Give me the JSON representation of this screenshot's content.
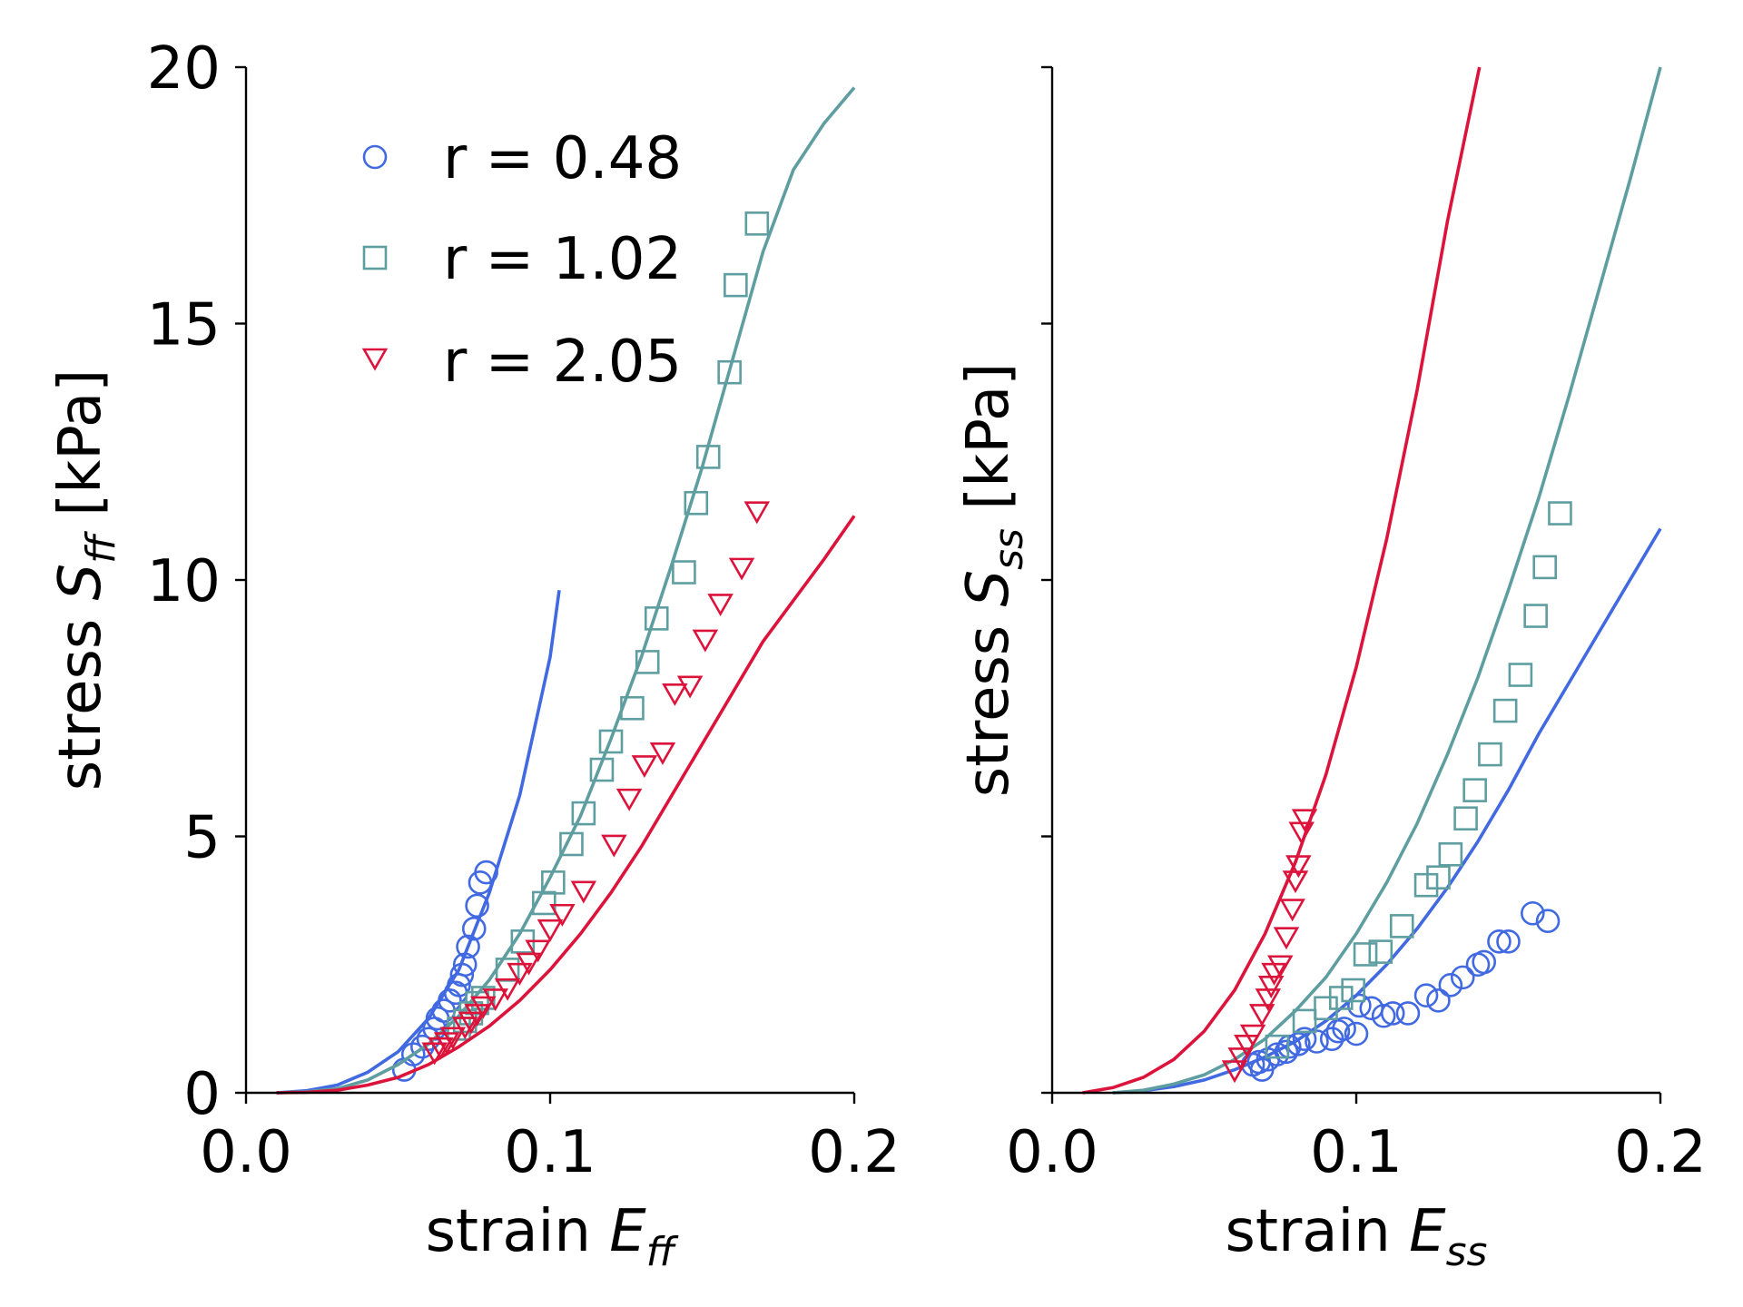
{
  "figure": {
    "legend": [
      {
        "label": "r = 0.48",
        "color": "#4169e1",
        "marker": "circle"
      },
      {
        "label": "r = 1.02",
        "color": "#5f9ea0",
        "marker": "square"
      },
      {
        "label": "r = 2.05",
        "color": "#dc143c",
        "marker": "triangle-down"
      }
    ]
  },
  "chart_data": [
    {
      "type": "scatter",
      "xlabel_main": "strain ",
      "xlabel_sym": "E",
      "xlabel_sub": "ff",
      "ylabel_main": "stress ",
      "ylabel_sym": "S",
      "ylabel_sub": "ff",
      "ylabel_unit": " [kPa]",
      "xlim": [
        0.0,
        0.2
      ],
      "ylim": [
        0,
        20
      ],
      "xticks": [
        "0.0",
        "0.1",
        "0.2"
      ],
      "xtick_values": [
        0.0,
        0.1,
        0.2
      ],
      "yticks": [
        "0",
        "5",
        "10",
        "15",
        "20"
      ],
      "ytick_values": [
        0,
        5,
        10,
        15,
        20
      ],
      "legend_position": "upper-left",
      "grid": false,
      "series": [
        {
          "name": "r = 0.48",
          "color": "#4169e1",
          "marker": "circle",
          "points": [
            [
              0.052,
              0.45
            ],
            [
              0.055,
              0.75
            ],
            [
              0.058,
              0.9
            ],
            [
              0.06,
              1.05
            ],
            [
              0.062,
              1.25
            ],
            [
              0.063,
              1.45
            ],
            [
              0.065,
              1.6
            ],
            [
              0.067,
              1.8
            ],
            [
              0.069,
              1.95
            ],
            [
              0.07,
              2.1
            ],
            [
              0.071,
              2.3
            ],
            [
              0.072,
              2.5
            ],
            [
              0.073,
              2.85
            ],
            [
              0.075,
              3.2
            ],
            [
              0.076,
              3.65
            ],
            [
              0.077,
              4.1
            ],
            [
              0.079,
              4.3
            ]
          ],
          "fit": [
            [
              0.01,
              0.0
            ],
            [
              0.02,
              0.04
            ],
            [
              0.03,
              0.15
            ],
            [
              0.04,
              0.4
            ],
            [
              0.05,
              0.8
            ],
            [
              0.06,
              1.45
            ],
            [
              0.07,
              2.4
            ],
            [
              0.08,
              3.9
            ],
            [
              0.09,
              5.8
            ],
            [
              0.1,
              8.5
            ],
            [
              0.103,
              9.8
            ]
          ]
        },
        {
          "name": "r = 1.02",
          "color": "#5f9ea0",
          "marker": "square",
          "points": [
            [
              0.07,
              1.25
            ],
            [
              0.072,
              1.4
            ],
            [
              0.074,
              1.55
            ],
            [
              0.076,
              1.75
            ],
            [
              0.078,
              1.85
            ],
            [
              0.086,
              2.4
            ],
            [
              0.091,
              2.95
            ],
            [
              0.098,
              3.7
            ],
            [
              0.101,
              4.1
            ],
            [
              0.107,
              4.85
            ],
            [
              0.111,
              5.45
            ],
            [
              0.117,
              6.3
            ],
            [
              0.12,
              6.85
            ],
            [
              0.127,
              7.5
            ],
            [
              0.132,
              8.4
            ],
            [
              0.135,
              9.25
            ],
            [
              0.144,
              10.15
            ],
            [
              0.148,
              11.5
            ],
            [
              0.152,
              12.4
            ],
            [
              0.159,
              14.05
            ],
            [
              0.161,
              15.75
            ],
            [
              0.168,
              16.95
            ]
          ],
          "fit": [
            [
              0.01,
              0.0
            ],
            [
              0.02,
              0.02
            ],
            [
              0.03,
              0.08
            ],
            [
              0.04,
              0.25
            ],
            [
              0.05,
              0.55
            ],
            [
              0.06,
              0.95
            ],
            [
              0.07,
              1.5
            ],
            [
              0.08,
              2.2
            ],
            [
              0.09,
              3.1
            ],
            [
              0.1,
              4.2
            ],
            [
              0.11,
              5.4
            ],
            [
              0.12,
              6.9
            ],
            [
              0.13,
              8.5
            ],
            [
              0.14,
              10.3
            ],
            [
              0.15,
              12.2
            ],
            [
              0.16,
              14.3
            ],
            [
              0.17,
              16.4
            ],
            [
              0.18,
              18.0
            ],
            [
              0.19,
              18.9
            ],
            [
              0.2,
              19.6
            ]
          ]
        },
        {
          "name": "r = 2.05",
          "color": "#dc143c",
          "marker": "triangle-down",
          "points": [
            [
              0.062,
              0.8
            ],
            [
              0.064,
              0.9
            ],
            [
              0.066,
              1.0
            ],
            [
              0.068,
              1.1
            ],
            [
              0.072,
              1.3
            ],
            [
              0.074,
              1.4
            ],
            [
              0.076,
              1.55
            ],
            [
              0.078,
              1.7
            ],
            [
              0.082,
              1.85
            ],
            [
              0.086,
              2.05
            ],
            [
              0.09,
              2.35
            ],
            [
              0.093,
              2.55
            ],
            [
              0.096,
              2.8
            ],
            [
              0.1,
              3.2
            ],
            [
              0.104,
              3.5
            ],
            [
              0.111,
              3.95
            ],
            [
              0.121,
              4.85
            ],
            [
              0.126,
              5.75
            ],
            [
              0.131,
              6.4
            ],
            [
              0.137,
              6.65
            ],
            [
              0.141,
              7.8
            ],
            [
              0.146,
              7.95
            ],
            [
              0.151,
              8.85
            ],
            [
              0.156,
              9.55
            ],
            [
              0.163,
              10.25
            ],
            [
              0.168,
              11.35
            ]
          ],
          "fit": [
            [
              0.01,
              0.0
            ],
            [
              0.02,
              0.01
            ],
            [
              0.03,
              0.05
            ],
            [
              0.04,
              0.15
            ],
            [
              0.05,
              0.3
            ],
            [
              0.06,
              0.55
            ],
            [
              0.07,
              0.9
            ],
            [
              0.08,
              1.3
            ],
            [
              0.09,
              1.8
            ],
            [
              0.1,
              2.4
            ],
            [
              0.11,
              3.1
            ],
            [
              0.12,
              3.9
            ],
            [
              0.13,
              4.8
            ],
            [
              0.14,
              5.8
            ],
            [
              0.15,
              6.8
            ],
            [
              0.16,
              7.8
            ],
            [
              0.17,
              8.8
            ],
            [
              0.18,
              9.6
            ],
            [
              0.19,
              10.4
            ],
            [
              0.2,
              11.25
            ]
          ]
        }
      ]
    },
    {
      "type": "scatter",
      "xlabel_main": "strain ",
      "xlabel_sym": "E",
      "xlabel_sub": "ss",
      "ylabel_main": "stress ",
      "ylabel_sym": "S",
      "ylabel_sub": "ss",
      "ylabel_unit": " [kPa]",
      "xlim": [
        0.0,
        0.2
      ],
      "ylim": [
        0,
        20
      ],
      "xticks": [
        "0.0",
        "0.1",
        "0.2"
      ],
      "xtick_values": [
        0.0,
        0.1,
        0.2
      ],
      "yticks": [],
      "ytick_values": [
        0,
        5,
        10,
        15,
        20
      ],
      "grid": false,
      "series": [
        {
          "name": "r = 0.48",
          "color": "#4169e1",
          "marker": "circle",
          "points": [
            [
              0.066,
              0.55
            ],
            [
              0.068,
              0.6
            ],
            [
              0.069,
              0.45
            ],
            [
              0.071,
              0.65
            ],
            [
              0.074,
              0.75
            ],
            [
              0.077,
              0.8
            ],
            [
              0.078,
              0.9
            ],
            [
              0.081,
              0.95
            ],
            [
              0.083,
              1.05
            ],
            [
              0.087,
              1.0
            ],
            [
              0.092,
              1.05
            ],
            [
              0.094,
              1.2
            ],
            [
              0.096,
              1.25
            ],
            [
              0.1,
              1.15
            ],
            [
              0.101,
              1.7
            ],
            [
              0.105,
              1.65
            ],
            [
              0.109,
              1.5
            ],
            [
              0.112,
              1.55
            ],
            [
              0.117,
              1.55
            ],
            [
              0.123,
              1.9
            ],
            [
              0.127,
              1.8
            ],
            [
              0.131,
              2.1
            ],
            [
              0.135,
              2.25
            ],
            [
              0.14,
              2.5
            ],
            [
              0.142,
              2.55
            ],
            [
              0.147,
              2.95
            ],
            [
              0.15,
              2.95
            ],
            [
              0.158,
              3.5
            ],
            [
              0.163,
              3.35
            ]
          ],
          "fit": [
            [
              0.02,
              0.0
            ],
            [
              0.03,
              0.04
            ],
            [
              0.04,
              0.12
            ],
            [
              0.05,
              0.25
            ],
            [
              0.06,
              0.45
            ],
            [
              0.07,
              0.7
            ],
            [
              0.08,
              1.0
            ],
            [
              0.09,
              1.4
            ],
            [
              0.1,
              1.9
            ],
            [
              0.11,
              2.5
            ],
            [
              0.12,
              3.2
            ],
            [
              0.13,
              4.0
            ],
            [
              0.14,
              4.9
            ],
            [
              0.15,
              5.9
            ],
            [
              0.16,
              7.0
            ],
            [
              0.17,
              8.0
            ],
            [
              0.18,
              9.0
            ],
            [
              0.19,
              10.0
            ],
            [
              0.2,
              11.0
            ]
          ]
        },
        {
          "name": "r = 1.02",
          "color": "#5f9ea0",
          "marker": "square",
          "points": [
            [
              0.074,
              0.9
            ],
            [
              0.083,
              1.4
            ],
            [
              0.09,
              1.65
            ],
            [
              0.095,
              1.85
            ],
            [
              0.099,
              2.0
            ],
            [
              0.103,
              2.7
            ],
            [
              0.108,
              2.75
            ],
            [
              0.115,
              3.25
            ],
            [
              0.123,
              4.05
            ],
            [
              0.127,
              4.2
            ],
            [
              0.131,
              4.65
            ],
            [
              0.136,
              5.35
            ],
            [
              0.139,
              5.9
            ],
            [
              0.144,
              6.6
            ],
            [
              0.149,
              7.45
            ],
            [
              0.154,
              8.15
            ],
            [
              0.159,
              9.3
            ],
            [
              0.162,
              10.25
            ],
            [
              0.167,
              11.3
            ]
          ],
          "fit": [
            [
              0.02,
              0.0
            ],
            [
              0.03,
              0.05
            ],
            [
              0.04,
              0.17
            ],
            [
              0.05,
              0.35
            ],
            [
              0.06,
              0.65
            ],
            [
              0.07,
              1.05
            ],
            [
              0.08,
              1.6
            ],
            [
              0.09,
              2.25
            ],
            [
              0.1,
              3.1
            ],
            [
              0.11,
              4.1
            ],
            [
              0.12,
              5.25
            ],
            [
              0.13,
              6.6
            ],
            [
              0.14,
              8.1
            ],
            [
              0.15,
              9.8
            ],
            [
              0.16,
              11.6
            ],
            [
              0.17,
              13.6
            ],
            [
              0.18,
              15.7
            ],
            [
              0.19,
              17.8
            ],
            [
              0.2,
              20.0
            ]
          ]
        },
        {
          "name": "r = 2.05",
          "color": "#dc143c",
          "marker": "triangle-down",
          "points": [
            [
              0.06,
              0.45
            ],
            [
              0.062,
              0.7
            ],
            [
              0.064,
              0.95
            ],
            [
              0.066,
              1.15
            ],
            [
              0.069,
              1.55
            ],
            [
              0.071,
              1.85
            ],
            [
              0.072,
              2.1
            ],
            [
              0.073,
              2.35
            ],
            [
              0.075,
              2.5
            ],
            [
              0.077,
              3.05
            ],
            [
              0.079,
              3.6
            ],
            [
              0.08,
              4.15
            ],
            [
              0.081,
              4.45
            ],
            [
              0.082,
              5.1
            ],
            [
              0.083,
              5.35
            ]
          ],
          "fit": [
            [
              0.01,
              0.0
            ],
            [
              0.02,
              0.1
            ],
            [
              0.03,
              0.3
            ],
            [
              0.04,
              0.65
            ],
            [
              0.05,
              1.2
            ],
            [
              0.06,
              2.0
            ],
            [
              0.07,
              3.1
            ],
            [
              0.08,
              4.5
            ],
            [
              0.09,
              6.2
            ],
            [
              0.1,
              8.3
            ],
            [
              0.11,
              10.8
            ],
            [
              0.12,
              13.7
            ],
            [
              0.13,
              17.0
            ],
            [
              0.1405,
              20.0
            ]
          ]
        }
      ]
    }
  ]
}
